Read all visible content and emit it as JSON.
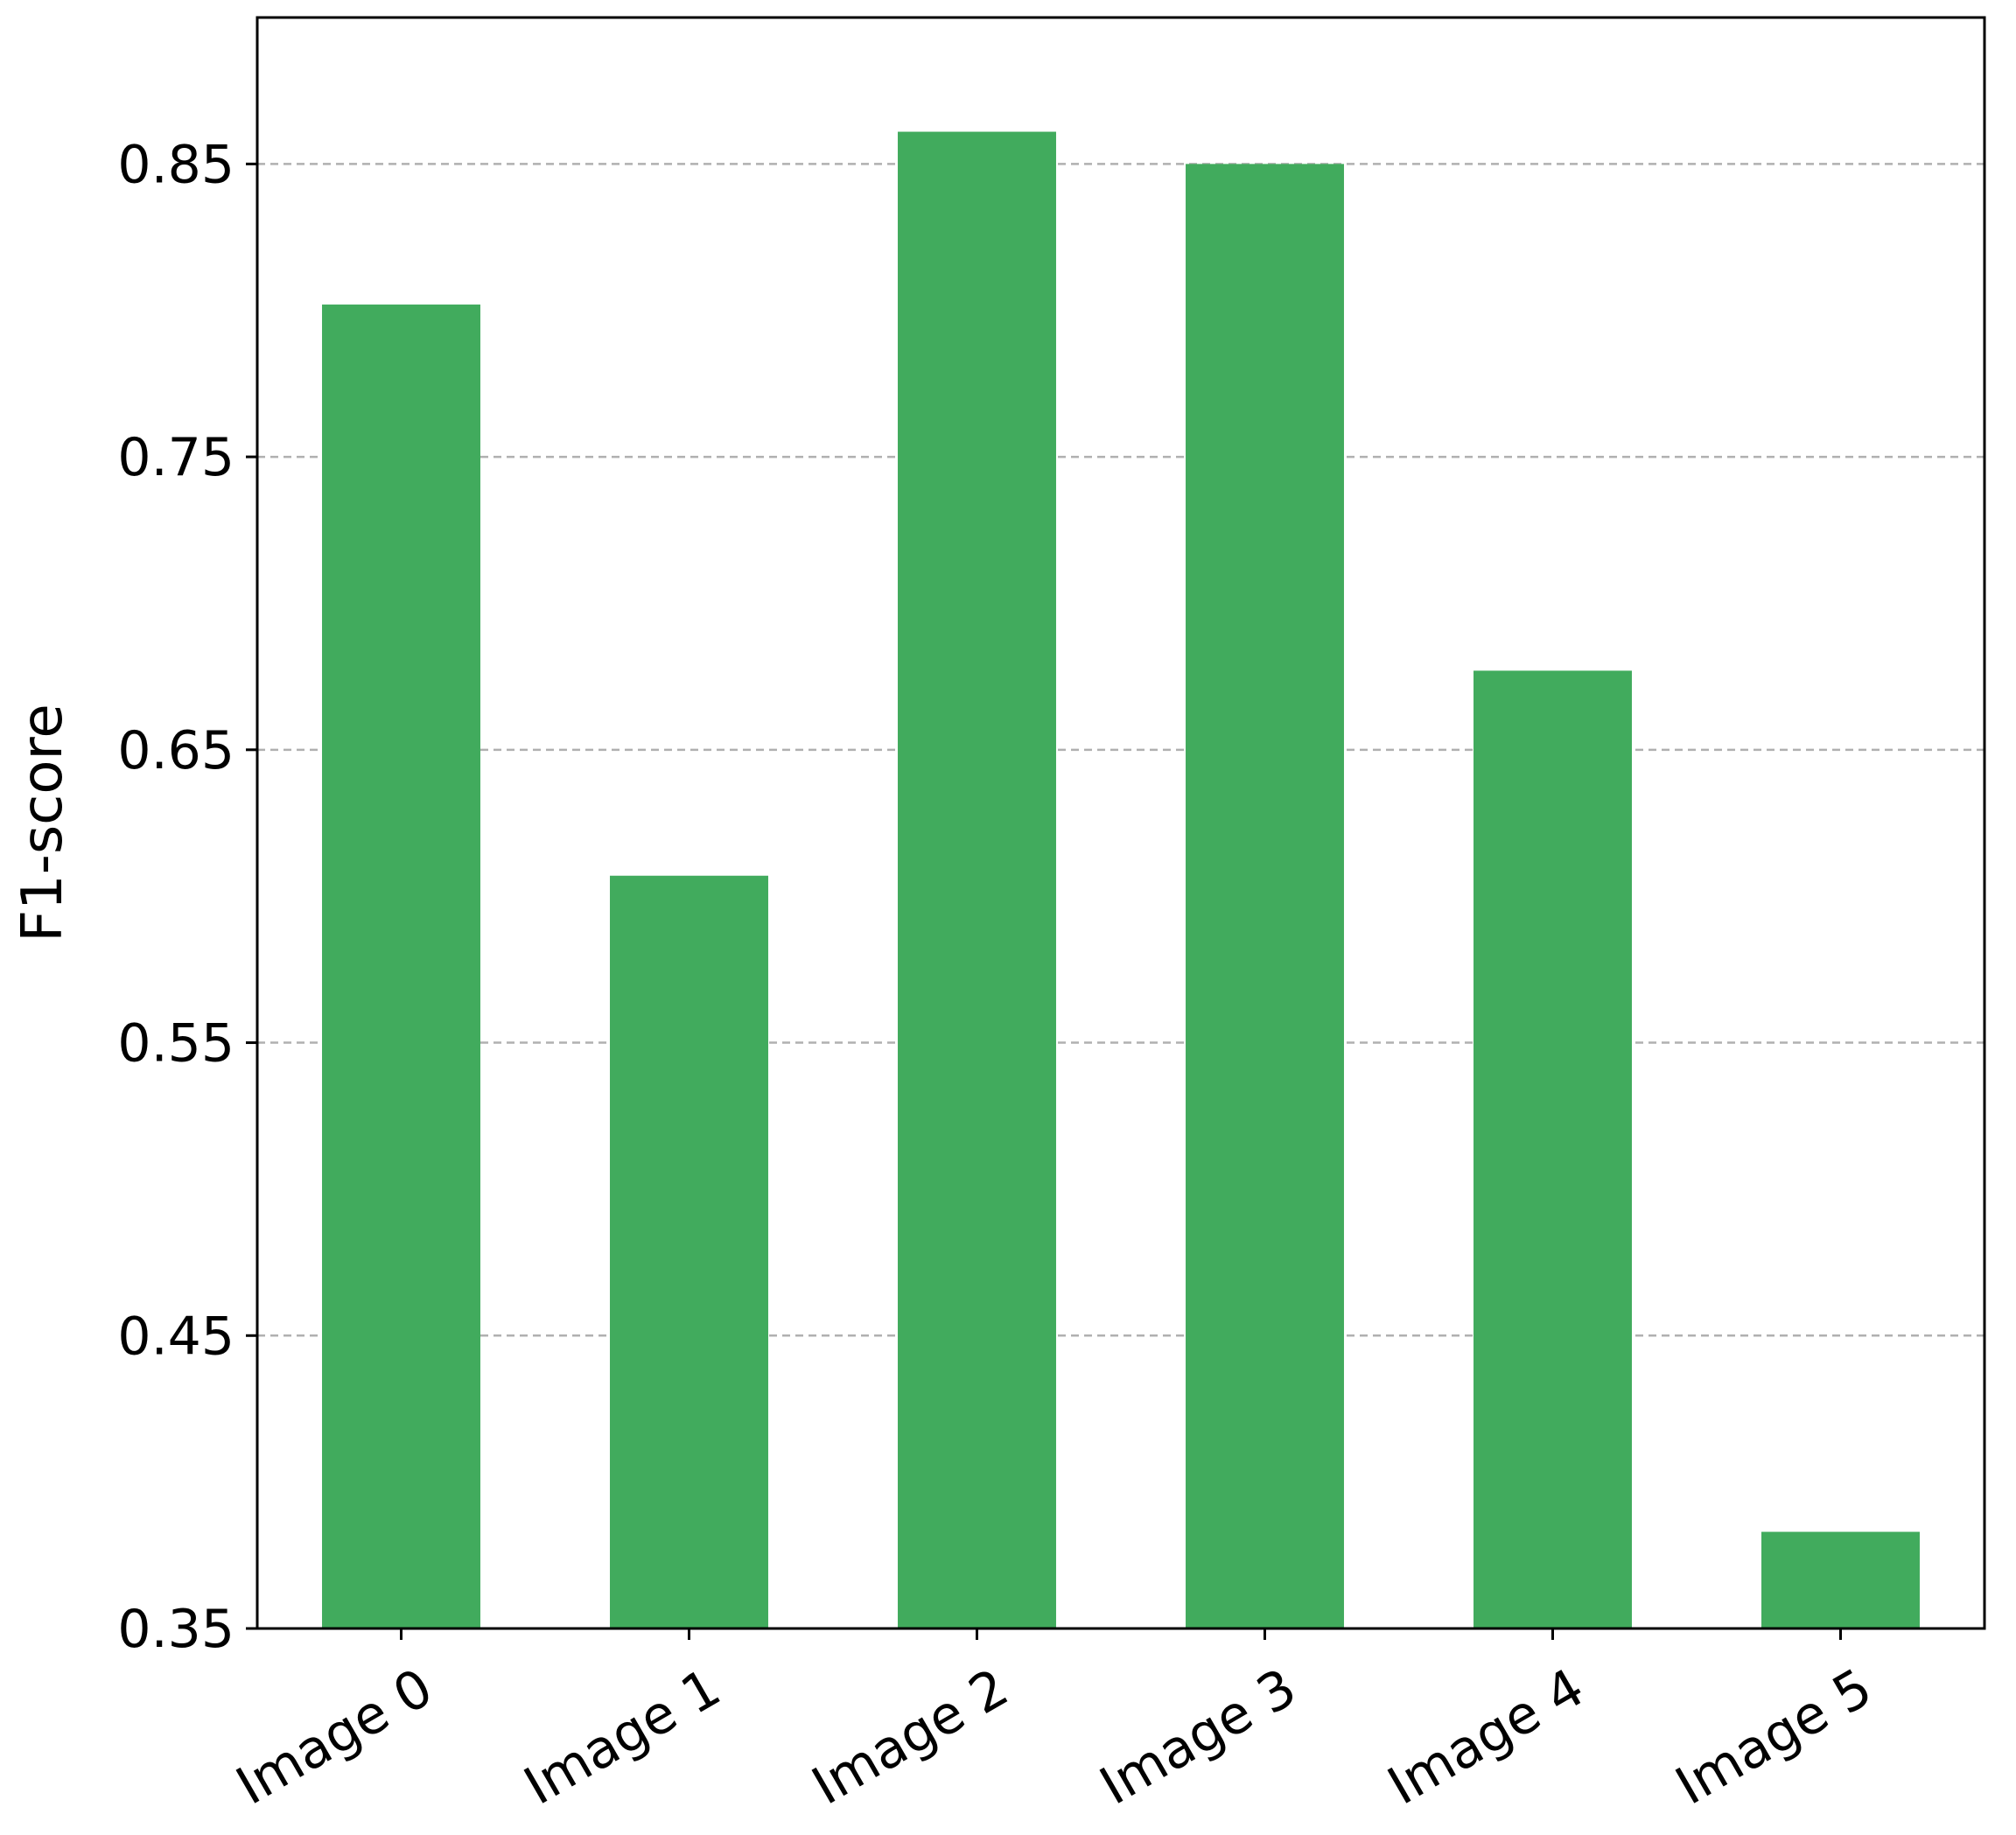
{
  "chart_data": {
    "type": "bar",
    "categories": [
      "Image 0",
      "Image 1",
      "Image 2",
      "Image 3",
      "Image 4",
      "Image 5"
    ],
    "values": [
      0.802,
      0.607,
      0.861,
      0.85,
      0.677,
      0.383
    ],
    "title": "",
    "xlabel": "",
    "ylabel": "F1-score",
    "ylim": [
      0.35,
      0.9
    ],
    "yticks": [
      0.35,
      0.45,
      0.55,
      0.65,
      0.75,
      0.85
    ],
    "ytick_labels": [
      "0.35",
      "0.45",
      "0.55",
      "0.65",
      "0.75",
      "0.85"
    ],
    "grid": "y, dashed",
    "legend": "none",
    "xtick_rotation": "30 degrees",
    "colors": {
      "bar": "#41AB5D",
      "grid": "#b0b0b0",
      "axis": "#000000"
    }
  }
}
